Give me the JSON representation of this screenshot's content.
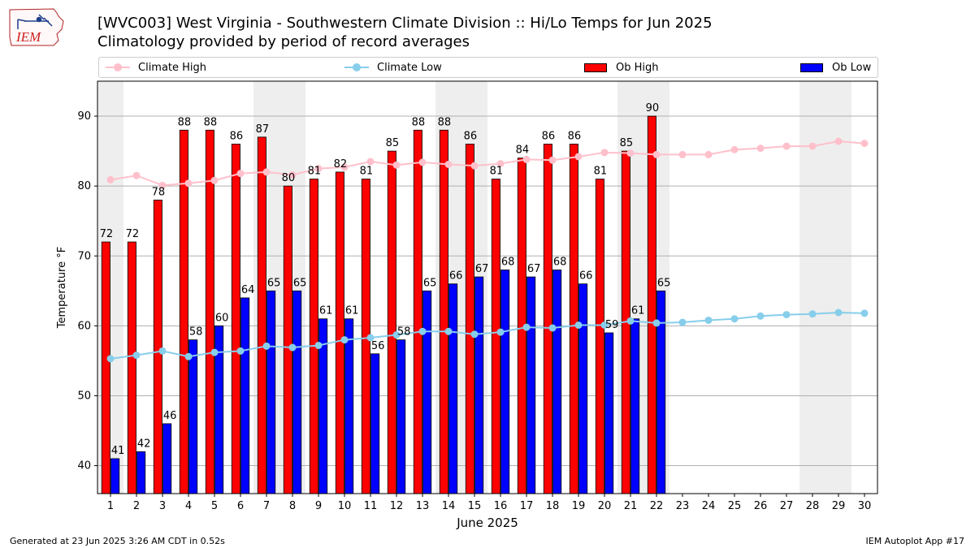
{
  "header": {
    "logo_text": "IEM",
    "title_line1": "[WVC003] West Virginia - Southwestern Climate Division :: Hi/Lo Temps for Jun 2025",
    "title_line2": "Climatology provided by period of record averages"
  },
  "legend": {
    "placement": "top",
    "items": [
      {
        "label": "Climate High",
        "color": "#ffc0cb",
        "kind": "line-marker"
      },
      {
        "label": "Climate Low",
        "color": "#87ceeb",
        "kind": "line-marker"
      },
      {
        "label": "Ob High",
        "color": "#ff0000",
        "kind": "bar"
      },
      {
        "label": "Ob Low",
        "color": "#0000ff",
        "kind": "bar"
      }
    ]
  },
  "footer": {
    "left": "Generated at 23 Jun 2025 3:26 AM CDT in 0.52s",
    "right": "IEM Autoplot App #17"
  },
  "chart_data": {
    "type": "bar",
    "xlabel": "June 2025",
    "ylabel": "Temperature °F",
    "ylim": [
      36,
      95
    ],
    "yticks": [
      40,
      50,
      60,
      70,
      80,
      90
    ],
    "grid": true,
    "categories": [
      "1",
      "2",
      "3",
      "4",
      "5",
      "6",
      "7",
      "8",
      "9",
      "10",
      "11",
      "12",
      "13",
      "14",
      "15",
      "16",
      "17",
      "18",
      "19",
      "20",
      "21",
      "22",
      "23",
      "24",
      "25",
      "26",
      "27",
      "28",
      "29",
      "30"
    ],
    "weekend_days": [
      1,
      7,
      8,
      14,
      15,
      21,
      22,
      28,
      29
    ],
    "series": [
      {
        "name": "Ob High",
        "type": "bar",
        "color": "#ff0000",
        "values": [
          72,
          72,
          78,
          88,
          88,
          86,
          87,
          80,
          81,
          82,
          81,
          85,
          88,
          88,
          86,
          81,
          84,
          86,
          86,
          81,
          85,
          90,
          null,
          null,
          null,
          null,
          null,
          null,
          null,
          null
        ]
      },
      {
        "name": "Ob Low",
        "type": "bar",
        "color": "#0000ff",
        "values": [
          41,
          42,
          46,
          58,
          60,
          64,
          65,
          65,
          61,
          61,
          56,
          58,
          65,
          66,
          67,
          68,
          67,
          68,
          66,
          59,
          61,
          65,
          null,
          null,
          null,
          null,
          null,
          null,
          null,
          null
        ]
      },
      {
        "name": "Climate High",
        "type": "line",
        "color": "#ffc0cb",
        "values": [
          80.9,
          81.5,
          80.1,
          80.4,
          80.8,
          81.8,
          82.0,
          81.6,
          82.5,
          82.7,
          83.5,
          83.0,
          83.4,
          83.1,
          82.9,
          83.2,
          83.8,
          83.7,
          84.2,
          84.8,
          84.7,
          84.5,
          84.5,
          84.5,
          85.2,
          85.4,
          85.7,
          85.7,
          86.4,
          86.1
        ]
      },
      {
        "name": "Climate Low",
        "type": "line",
        "color": "#87ceeb",
        "values": [
          55.3,
          55.8,
          56.4,
          55.6,
          56.2,
          56.4,
          57.1,
          56.9,
          57.2,
          58.0,
          58.3,
          58.7,
          59.2,
          59.2,
          58.8,
          59.1,
          59.8,
          59.7,
          60.1,
          60.1,
          60.7,
          60.4,
          60.5,
          60.8,
          61.0,
          61.4,
          61.6,
          61.7,
          61.9,
          61.8
        ]
      }
    ]
  }
}
